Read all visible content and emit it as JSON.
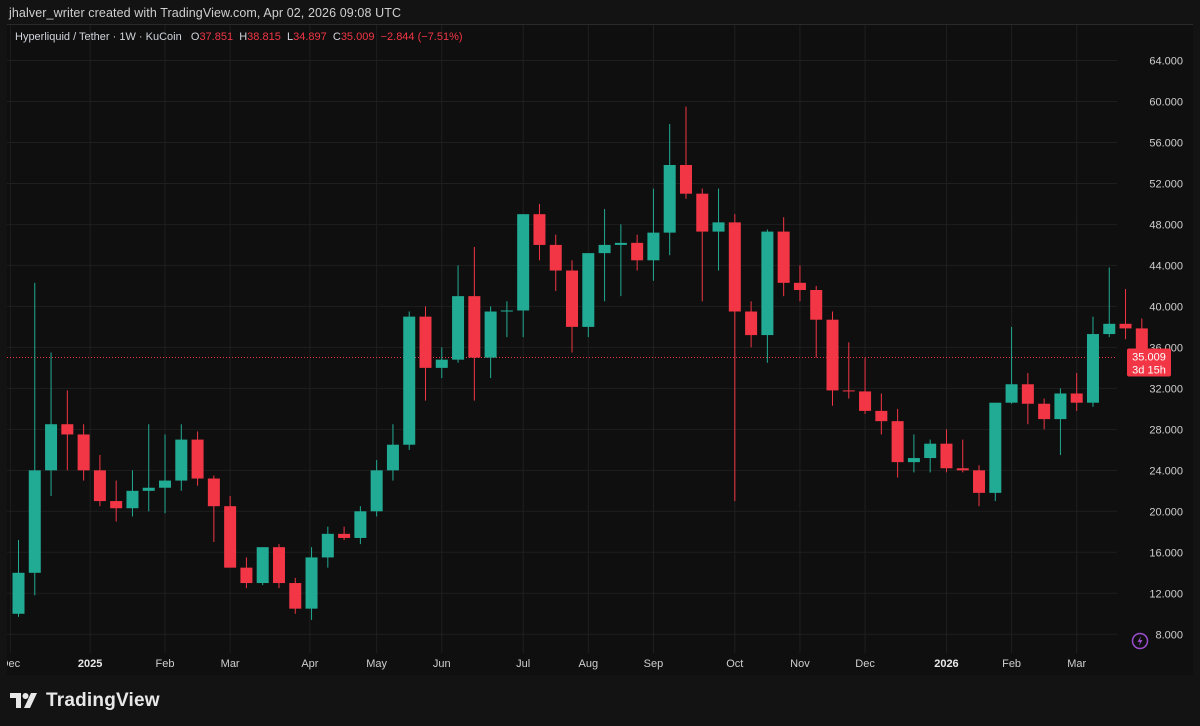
{
  "header": {
    "attribution": "jhalver_writer created with TradingView.com, Apr 02, 2026 09:08 UTC"
  },
  "legend": {
    "symbol": "Hyperliquid / Tether · 1W · KuCoin",
    "o_label": "O",
    "o_value": "37.851",
    "h_label": "H",
    "h_value": "38.815",
    "l_label": "L",
    "l_value": "34.897",
    "c_label": "C",
    "c_value": "35.009",
    "change": "−2.844 (−7.51%)"
  },
  "price_tag": {
    "price": "35.009",
    "countdown": "3d 15h"
  },
  "brand": {
    "name": "TradingView"
  },
  "colors": {
    "up": "#22ab94",
    "down": "#f23645",
    "background": "#0f0f0f",
    "grid": "#1f1f1f",
    "price_line": "#f23645"
  },
  "chart_data": {
    "type": "candlestick",
    "title": "Hyperliquid / Tether · 1W · KuCoin",
    "y_axis_side": "right",
    "ylim": [
      5.0,
      66.0
    ],
    "y_ticks": [
      "8.000",
      "12.000",
      "16.000",
      "20.000",
      "24.000",
      "28.000",
      "32.000",
      "36.000",
      "40.000",
      "44.000",
      "48.000",
      "52.000",
      "56.000",
      "60.000",
      "64.000"
    ],
    "x_labels": [
      {
        "label": "Dec",
        "index": -0.5,
        "year": false
      },
      {
        "label": "2025",
        "index": 4.4,
        "year": true
      },
      {
        "label": "Feb",
        "index": 9.0,
        "year": false
      },
      {
        "label": "Mar",
        "index": 13.0,
        "year": false
      },
      {
        "label": "Apr",
        "index": 17.9,
        "year": false
      },
      {
        "label": "May",
        "index": 22.0,
        "year": false
      },
      {
        "label": "Jun",
        "index": 26.0,
        "year": false
      },
      {
        "label": "Jul",
        "index": 31.0,
        "year": false
      },
      {
        "label": "Aug",
        "index": 35.0,
        "year": false
      },
      {
        "label": "Sep",
        "index": 39.0,
        "year": false
      },
      {
        "label": "Oct",
        "index": 44.0,
        "year": false
      },
      {
        "label": "Nov",
        "index": 48.0,
        "year": false
      },
      {
        "label": "Dec",
        "index": 52.0,
        "year": false
      },
      {
        "label": "2026",
        "index": 57.0,
        "year": true
      },
      {
        "label": "Feb",
        "index": 61.0,
        "year": false
      },
      {
        "label": "Mar",
        "index": 65.0,
        "year": false
      }
    ],
    "last_price": 35.009,
    "candles": [
      {
        "o": 10.0,
        "h": 17.2,
        "l": 9.7,
        "c": 14.0
      },
      {
        "o": 14.0,
        "h": 42.3,
        "l": 11.8,
        "c": 24.0
      },
      {
        "o": 24.0,
        "h": 35.5,
        "l": 21.5,
        "c": 28.5
      },
      {
        "o": 28.5,
        "h": 31.8,
        "l": 24.0,
        "c": 27.5
      },
      {
        "o": 27.5,
        "h": 28.5,
        "l": 23.0,
        "c": 24.0
      },
      {
        "o": 24.0,
        "h": 25.5,
        "l": 20.5,
        "c": 21.0
      },
      {
        "o": 21.0,
        "h": 23.0,
        "l": 19.0,
        "c": 20.3
      },
      {
        "o": 20.3,
        "h": 24.0,
        "l": 19.5,
        "c": 22.0
      },
      {
        "o": 22.0,
        "h": 28.5,
        "l": 20.0,
        "c": 22.3
      },
      {
        "o": 22.3,
        "h": 27.5,
        "l": 19.8,
        "c": 23.0
      },
      {
        "o": 23.0,
        "h": 28.5,
        "l": 22.0,
        "c": 27.0
      },
      {
        "o": 27.0,
        "h": 27.8,
        "l": 22.5,
        "c": 23.2
      },
      {
        "o": 23.2,
        "h": 23.5,
        "l": 17.0,
        "c": 20.5
      },
      {
        "o": 20.5,
        "h": 21.5,
        "l": 14.5,
        "c": 14.5
      },
      {
        "o": 14.5,
        "h": 15.5,
        "l": 12.5,
        "c": 13.0
      },
      {
        "o": 13.0,
        "h": 16.5,
        "l": 12.8,
        "c": 16.5
      },
      {
        "o": 16.5,
        "h": 16.8,
        "l": 12.5,
        "c": 13.0
      },
      {
        "o": 13.0,
        "h": 13.5,
        "l": 10.0,
        "c": 10.5
      },
      {
        "o": 10.5,
        "h": 16.5,
        "l": 9.4,
        "c": 15.5
      },
      {
        "o": 15.5,
        "h": 18.5,
        "l": 14.5,
        "c": 17.8
      },
      {
        "o": 17.8,
        "h": 18.5,
        "l": 17.2,
        "c": 17.4
      },
      {
        "o": 17.4,
        "h": 20.5,
        "l": 16.8,
        "c": 20.0
      },
      {
        "o": 20.0,
        "h": 25.0,
        "l": 19.5,
        "c": 24.0
      },
      {
        "o": 24.0,
        "h": 28.5,
        "l": 23.0,
        "c": 26.5
      },
      {
        "o": 26.5,
        "h": 39.5,
        "l": 26.0,
        "c": 39.0
      },
      {
        "o": 39.0,
        "h": 40.0,
        "l": 30.8,
        "c": 34.0
      },
      {
        "o": 34.0,
        "h": 36.0,
        "l": 33.0,
        "c": 34.8
      },
      {
        "o": 34.8,
        "h": 44.0,
        "l": 34.5,
        "c": 41.0
      },
      {
        "o": 41.0,
        "h": 45.8,
        "l": 30.8,
        "c": 35.0
      },
      {
        "o": 35.0,
        "h": 40.0,
        "l": 33.0,
        "c": 39.5
      },
      {
        "o": 39.5,
        "h": 40.5,
        "l": 37.0,
        "c": 39.6
      },
      {
        "o": 39.6,
        "h": 49.0,
        "l": 37.0,
        "c": 49.0
      },
      {
        "o": 49.0,
        "h": 50.0,
        "l": 44.5,
        "c": 46.0
      },
      {
        "o": 46.0,
        "h": 47.0,
        "l": 41.5,
        "c": 43.5
      },
      {
        "o": 43.5,
        "h": 44.5,
        "l": 35.5,
        "c": 38.0
      },
      {
        "o": 38.0,
        "h": 45.0,
        "l": 37.0,
        "c": 45.2
      },
      {
        "o": 45.2,
        "h": 49.5,
        "l": 40.5,
        "c": 46.0
      },
      {
        "o": 46.0,
        "h": 48.0,
        "l": 41.0,
        "c": 46.2
      },
      {
        "o": 46.2,
        "h": 47.0,
        "l": 43.5,
        "c": 44.5
      },
      {
        "o": 44.5,
        "h": 51.5,
        "l": 42.5,
        "c": 47.2
      },
      {
        "o": 47.2,
        "h": 57.8,
        "l": 45.0,
        "c": 53.8
      },
      {
        "o": 53.8,
        "h": 59.5,
        "l": 50.5,
        "c": 51.0
      },
      {
        "o": 51.0,
        "h": 51.5,
        "l": 40.5,
        "c": 47.3
      },
      {
        "o": 47.3,
        "h": 51.5,
        "l": 43.5,
        "c": 48.2
      },
      {
        "o": 48.2,
        "h": 49.0,
        "l": 21.0,
        "c": 39.5
      },
      {
        "o": 39.5,
        "h": 40.5,
        "l": 36.0,
        "c": 37.2
      },
      {
        "o": 37.2,
        "h": 47.5,
        "l": 34.5,
        "c": 47.3
      },
      {
        "o": 47.3,
        "h": 48.7,
        "l": 41.0,
        "c": 42.3
      },
      {
        "o": 42.3,
        "h": 44.0,
        "l": 40.5,
        "c": 41.6
      },
      {
        "o": 41.6,
        "h": 42.0,
        "l": 35.0,
        "c": 38.7
      },
      {
        "o": 38.7,
        "h": 39.5,
        "l": 30.3,
        "c": 31.8
      },
      {
        "o": 31.8,
        "h": 36.5,
        "l": 31.0,
        "c": 31.7
      },
      {
        "o": 31.7,
        "h": 35.0,
        "l": 29.5,
        "c": 29.8
      },
      {
        "o": 29.8,
        "h": 31.5,
        "l": 27.5,
        "c": 28.8
      },
      {
        "o": 28.8,
        "h": 30.0,
        "l": 23.3,
        "c": 24.8
      },
      {
        "o": 24.8,
        "h": 27.5,
        "l": 23.8,
        "c": 25.2
      },
      {
        "o": 25.2,
        "h": 27.0,
        "l": 23.8,
        "c": 26.6
      },
      {
        "o": 26.6,
        "h": 28.0,
        "l": 23.8,
        "c": 24.2
      },
      {
        "o": 24.2,
        "h": 27.0,
        "l": 23.8,
        "c": 24.0
      },
      {
        "o": 24.0,
        "h": 24.5,
        "l": 20.5,
        "c": 21.8
      },
      {
        "o": 21.8,
        "h": 30.5,
        "l": 21.0,
        "c": 30.6
      },
      {
        "o": 30.6,
        "h": 38.0,
        "l": 30.5,
        "c": 32.4
      },
      {
        "o": 32.4,
        "h": 33.5,
        "l": 28.5,
        "c": 30.5
      },
      {
        "o": 30.5,
        "h": 31.0,
        "l": 28.0,
        "c": 29.0
      },
      {
        "o": 29.0,
        "h": 32.0,
        "l": 25.5,
        "c": 31.5
      },
      {
        "o": 31.5,
        "h": 33.5,
        "l": 29.8,
        "c": 30.6
      },
      {
        "o": 30.6,
        "h": 39.0,
        "l": 30.2,
        "c": 37.3
      },
      {
        "o": 37.3,
        "h": 43.8,
        "l": 37.0,
        "c": 38.3
      },
      {
        "o": 38.3,
        "h": 41.7,
        "l": 36.8,
        "c": 37.851
      },
      {
        "o": 37.851,
        "h": 38.815,
        "l": 34.897,
        "c": 35.009
      }
    ]
  }
}
